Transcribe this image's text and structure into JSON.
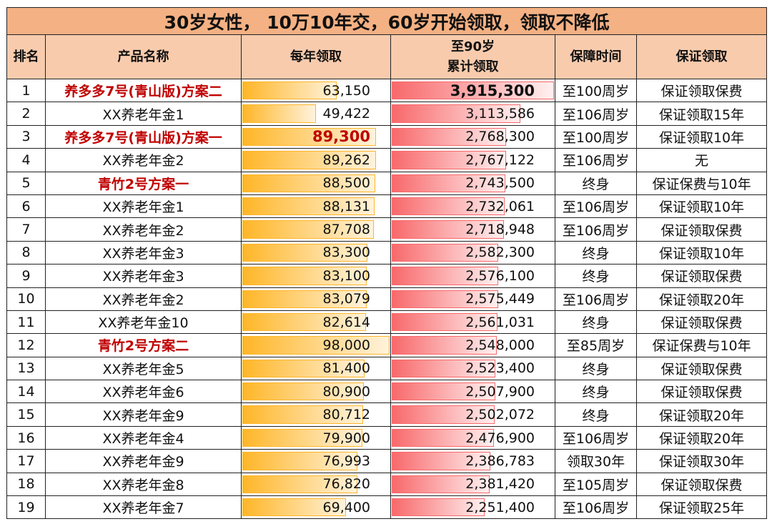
{
  "title": "30岁女性， 10万10年交，60岁开始领取，领取不降低",
  "headers": {
    "rank": "排名",
    "name": "产品名称",
    "annual": "每年领取",
    "cum_l1": "至90岁",
    "cum_l2": "累计领取",
    "term": "保障时间",
    "guarantee": "保证领取"
  },
  "colors": {
    "title_bg": "#f4b183",
    "header_bg": "#f8cbad",
    "annual_bar": "#ffb628",
    "cum_bar": "#f8696b",
    "highlight": "#c00000"
  },
  "bar_max": {
    "annual": 98000,
    "cumulative": 3915300
  },
  "rows": [
    {
      "rank": "1",
      "name": "养多多7号(青山版)方案二",
      "hl": true,
      "annual": 63150,
      "annual_text": "63,150",
      "cum": 3915300,
      "cum_text": "3,915,300",
      "term": "至100周岁",
      "guarantee": "保证领取保费",
      "bold_cum": true
    },
    {
      "rank": "2",
      "name": "XX养老年金1",
      "annual": 49422,
      "annual_text": "49,422",
      "cum": 3113586,
      "cum_text": "3,113,586",
      "term": "至106周岁",
      "guarantee": "保证领取15年"
    },
    {
      "rank": "3",
      "name": "养多多7号(青山版)方案一",
      "hl": true,
      "annual": 89300,
      "annual_text": "89,300",
      "cum": 2768300,
      "cum_text": "2,768,300",
      "term": "至100周岁",
      "guarantee": "保证领取10年",
      "bold_annual": true
    },
    {
      "rank": "4",
      "name": "XX养老年金2",
      "annual": 89262,
      "annual_text": "89,262",
      "cum": 2767122,
      "cum_text": "2,767,122",
      "term": "至106周岁",
      "guarantee": "无"
    },
    {
      "rank": "5",
      "name": "青竹2号方案一",
      "hl": true,
      "annual": 88500,
      "annual_text": "88,500",
      "cum": 2743500,
      "cum_text": "2,743,500",
      "term": "终身",
      "guarantee": "保证保费与10年"
    },
    {
      "rank": "6",
      "name": "XX养老年金1",
      "annual": 88131,
      "annual_text": "88,131",
      "cum": 2732061,
      "cum_text": "2,732,061",
      "term": "至106周岁",
      "guarantee": "保证领取10年"
    },
    {
      "rank": "7",
      "name": "XX养老年金2",
      "annual": 87708,
      "annual_text": "87,708",
      "cum": 2718948,
      "cum_text": "2,718,948",
      "term": "至106周岁",
      "guarantee": "保证领取保费"
    },
    {
      "rank": "8",
      "name": "XX养老年金3",
      "annual": 83300,
      "annual_text": "83,300",
      "cum": 2582300,
      "cum_text": "2,582,300",
      "term": "终身",
      "guarantee": "保证领取10年"
    },
    {
      "rank": "9",
      "name": "XX养老年金3",
      "annual": 83100,
      "annual_text": "83,100",
      "cum": 2576100,
      "cum_text": "2,576,100",
      "term": "终身",
      "guarantee": "保证领取保费"
    },
    {
      "rank": "10",
      "name": "XX养老年金2",
      "annual": 83079,
      "annual_text": "83,079",
      "cum": 2575449,
      "cum_text": "2,575,449",
      "term": "至106周岁",
      "guarantee": "保证领取20年"
    },
    {
      "rank": "11",
      "name": "XX养老年金10",
      "annual": 82614,
      "annual_text": "82,614",
      "cum": 2561031,
      "cum_text": "2,561,031",
      "term": "终身",
      "guarantee": "保证领取保费"
    },
    {
      "rank": "12",
      "name": "青竹2号方案二",
      "hl": true,
      "annual": 98000,
      "annual_text": "98,000",
      "cum": 2548000,
      "cum_text": "2,548,000",
      "term": "至85周岁",
      "guarantee": "保证保费与10年"
    },
    {
      "rank": "13",
      "name": "XX养老年金5",
      "annual": 81400,
      "annual_text": "81,400",
      "cum": 2523400,
      "cum_text": "2,523,400",
      "term": "终身",
      "guarantee": "保证领取保费"
    },
    {
      "rank": "14",
      "name": "XX养老年金6",
      "annual": 80900,
      "annual_text": "80,900",
      "cum": 2507900,
      "cum_text": "2,507,900",
      "term": "终身",
      "guarantee": "保证领取保费"
    },
    {
      "rank": "15",
      "name": "XX养老年金9",
      "annual": 80712,
      "annual_text": "80,712",
      "cum": 2502072,
      "cum_text": "2,502,072",
      "term": "终身",
      "guarantee": "保证领取20年"
    },
    {
      "rank": "16",
      "name": "XX养老年金4",
      "annual": 79900,
      "annual_text": "79,900",
      "cum": 2476900,
      "cum_text": "2,476,900",
      "term": "至106周岁",
      "guarantee": "保证领取20年"
    },
    {
      "rank": "17",
      "name": "XX养老年金9",
      "annual": 76993,
      "annual_text": "76,993",
      "cum": 2386783,
      "cum_text": "2,386,783",
      "term": "领取30年",
      "guarantee": "保证领取30年"
    },
    {
      "rank": "18",
      "name": "XX养老年金8",
      "annual": 76820,
      "annual_text": "76,820",
      "cum": 2381420,
      "cum_text": "2,381,420",
      "term": "至105周岁",
      "guarantee": "保证领取保费"
    },
    {
      "rank": "19",
      "name": "XX养老年金7",
      "annual": 69400,
      "annual_text": "69,400",
      "cum": 2251400,
      "cum_text": "2,251,400",
      "term": "至106周岁",
      "guarantee": "保证领取25年"
    }
  ]
}
